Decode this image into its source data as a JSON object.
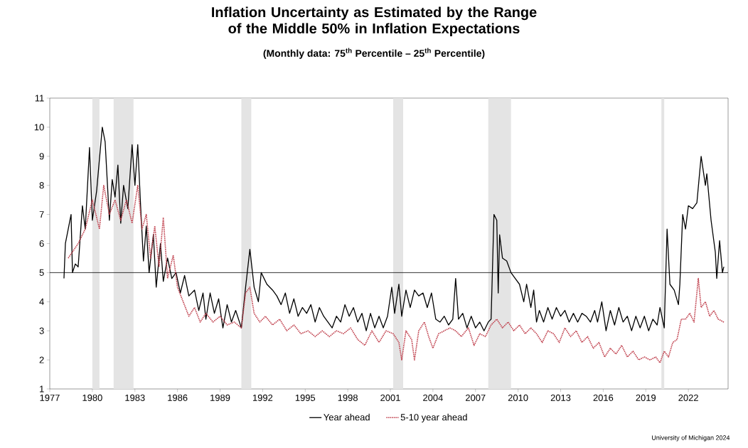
{
  "chart_data": {
    "type": "line",
    "title": "Inflation Uncertainty as Estimated by the Range of the Middle 50% in Inflation Expectations",
    "subtitle": "(Monthly data:  75$^{th}$ Percentile – 25$^{th}$ Percentile)",
    "xlim": [
      1977,
      2024.8
    ],
    "xticks": [
      1977,
      1980,
      1983,
      1986,
      1989,
      1992,
      1995,
      1998,
      2001,
      2004,
      2007,
      2010,
      2013,
      2016,
      2019,
      2022
    ],
    "ylim": [
      1,
      11
    ],
    "yticks": [
      1,
      2,
      3,
      4,
      5,
      6,
      7,
      8,
      9,
      10,
      11
    ],
    "legend": "bottom",
    "marker": "none",
    "ref_lines": [
      {
        "axis": "y",
        "value": 5,
        "color": "#000000"
      }
    ],
    "bands": [
      {
        "axis": "x",
        "from": 1980.0,
        "to": 1980.5,
        "color": "#e4e4e4"
      },
      {
        "axis": "x",
        "from": 1981.5,
        "to": 1982.9,
        "color": "#e4e4e4"
      },
      {
        "axis": "x",
        "from": 1990.5,
        "to": 1991.2,
        "color": "#e4e4e4"
      },
      {
        "axis": "x",
        "from": 2001.2,
        "to": 2001.9,
        "color": "#e4e4e4"
      },
      {
        "axis": "x",
        "from": 2007.9,
        "to": 2009.5,
        "color": "#e4e4e4"
      },
      {
        "axis": "x",
        "from": 2020.1,
        "to": 2020.3,
        "color": "#e4e4e4"
      }
    ],
    "annotations": [
      "University of Michigan 2024"
    ],
    "series": [
      {
        "name": "Year ahead",
        "color": "#000000",
        "line_style": "solid",
        "x": [
          1978.0,
          1978.1,
          1978.3,
          1978.5,
          1978.6,
          1978.8,
          1979.0,
          1979.3,
          1979.5,
          1979.8,
          1980.0,
          1980.3,
          1980.7,
          1980.9,
          1981.2,
          1981.4,
          1981.6,
          1981.8,
          1982.0,
          1982.2,
          1982.5,
          1982.8,
          1983.0,
          1983.2,
          1983.4,
          1983.6,
          1983.8,
          1984.0,
          1984.3,
          1984.5,
          1984.8,
          1985.0,
          1985.3,
          1985.6,
          1985.9,
          1986.2,
          1986.5,
          1986.8,
          1987.2,
          1987.5,
          1987.8,
          1988.0,
          1988.3,
          1988.6,
          1988.9,
          1989.2,
          1989.5,
          1989.8,
          1990.1,
          1990.5,
          1990.8,
          1991.1,
          1991.4,
          1991.7,
          1991.9,
          1992.3,
          1992.7,
          1993.0,
          1993.3,
          1993.6,
          1993.9,
          1994.2,
          1994.5,
          1994.8,
          1995.1,
          1995.4,
          1995.7,
          1996.0,
          1996.3,
          1996.6,
          1996.9,
          1997.2,
          1997.5,
          1997.8,
          1998.1,
          1998.4,
          1998.7,
          1999.0,
          1999.3,
          1999.6,
          1999.9,
          2000.2,
          2000.5,
          2000.8,
          2001.1,
          2001.3,
          2001.6,
          2001.8,
          2002.1,
          2002.4,
          2002.7,
          2003.0,
          2003.3,
          2003.6,
          2003.9,
          2004.2,
          2004.5,
          2004.8,
          2005.1,
          2005.4,
          2005.6,
          2005.8,
          2006.1,
          2006.4,
          2006.7,
          2007.0,
          2007.3,
          2007.6,
          2007.9,
          2008.1,
          2008.3,
          2008.5,
          2008.6,
          2008.7,
          2008.9,
          2009.2,
          2009.5,
          2009.8,
          2010.1,
          2010.4,
          2010.6,
          2010.9,
          2011.1,
          2011.3,
          2011.5,
          2011.8,
          2012.1,
          2012.4,
          2012.7,
          2013.0,
          2013.3,
          2013.6,
          2013.9,
          2014.2,
          2014.5,
          2014.8,
          2015.1,
          2015.4,
          2015.6,
          2015.9,
          2016.2,
          2016.5,
          2016.8,
          2017.1,
          2017.4,
          2017.7,
          2018.0,
          2018.3,
          2018.6,
          2018.9,
          2019.2,
          2019.5,
          2019.8,
          2020.0,
          2020.3,
          2020.5,
          2020.7,
          2021.0,
          2021.3,
          2021.4,
          2021.6,
          2021.8,
          2022.0,
          2022.3,
          2022.6,
          2022.9,
          2023.2,
          2023.3,
          2023.6,
          2023.9,
          2024.0,
          2024.2,
          2024.4,
          2024.5
        ],
        "values": [
          4.8,
          6.0,
          6.5,
          7.0,
          5.0,
          5.3,
          5.2,
          7.3,
          6.5,
          9.3,
          6.8,
          7.8,
          10.0,
          9.5,
          6.8,
          8.2,
          7.6,
          8.7,
          6.7,
          8.0,
          7.2,
          9.4,
          8.0,
          9.4,
          7.3,
          5.4,
          6.6,
          5.0,
          6.3,
          4.5,
          6.0,
          4.7,
          5.5,
          4.8,
          5.0,
          4.3,
          4.9,
          4.2,
          4.4,
          3.7,
          4.3,
          3.4,
          4.3,
          3.6,
          4.1,
          3.1,
          3.9,
          3.3,
          3.7,
          3.1,
          4.5,
          5.8,
          4.5,
          4.0,
          5.0,
          4.6,
          4.4,
          4.2,
          3.9,
          4.3,
          3.6,
          4.1,
          3.5,
          3.8,
          3.6,
          3.9,
          3.3,
          3.8,
          3.5,
          3.3,
          3.1,
          3.5,
          3.3,
          3.9,
          3.5,
          3.8,
          3.3,
          3.6,
          3.0,
          3.6,
          3.1,
          3.5,
          3.1,
          3.5,
          4.5,
          3.6,
          4.6,
          3.5,
          4.4,
          3.8,
          4.4,
          4.2,
          4.3,
          3.8,
          4.3,
          3.4,
          3.3,
          3.5,
          3.2,
          3.4,
          4.8,
          3.4,
          3.6,
          3.1,
          3.5,
          3.1,
          3.3,
          3.0,
          3.3,
          3.4,
          7.0,
          6.8,
          4.3,
          6.3,
          5.5,
          5.4,
          5.0,
          4.8,
          4.6,
          4.0,
          4.6,
          3.8,
          4.4,
          3.3,
          3.7,
          3.3,
          3.8,
          3.4,
          3.8,
          3.5,
          3.7,
          3.3,
          3.6,
          3.3,
          3.6,
          3.5,
          3.3,
          3.7,
          3.3,
          4.0,
          3.0,
          3.7,
          3.2,
          3.8,
          3.3,
          3.5,
          3.0,
          3.5,
          3.1,
          3.5,
          3.0,
          3.4,
          3.2,
          3.8,
          3.1,
          6.5,
          4.6,
          4.4,
          3.9,
          4.6,
          7.0,
          6.5,
          7.3,
          7.2,
          7.4,
          9.0,
          8.0,
          8.4,
          6.8,
          5.7,
          4.8,
          6.1,
          5.0,
          5.2
        ]
      },
      {
        "name": "5-10 year ahead",
        "color": "#c0404d",
        "line_style": "dotted",
        "x": [
          1978.3,
          1979.0,
          1979.5,
          1980.0,
          1980.5,
          1980.8,
          1981.2,
          1981.6,
          1982.0,
          1982.4,
          1982.8,
          1983.2,
          1983.5,
          1983.8,
          1984.1,
          1984.4,
          1984.7,
          1985.0,
          1985.3,
          1985.7,
          1986.0,
          1986.4,
          1986.8,
          1987.2,
          1987.6,
          1988.0,
          1988.5,
          1989.0,
          1989.5,
          1990.0,
          1990.5,
          1990.8,
          1991.1,
          1991.4,
          1991.8,
          1992.2,
          1992.7,
          1993.2,
          1993.7,
          1994.2,
          1994.7,
          1995.2,
          1995.7,
          1996.2,
          1996.7,
          1997.2,
          1997.7,
          1998.2,
          1998.7,
          1999.2,
          1999.7,
          2000.2,
          2000.7,
          2001.2,
          2001.6,
          2001.8,
          2002.1,
          2002.5,
          2002.7,
          2003.0,
          2003.4,
          2003.7,
          2004.0,
          2004.4,
          2004.8,
          2005.2,
          2005.6,
          2006.0,
          2006.5,
          2006.9,
          2007.3,
          2007.7,
          2008.1,
          2008.5,
          2008.9,
          2009.3,
          2009.7,
          2010.1,
          2010.5,
          2010.9,
          2011.3,
          2011.7,
          2012.1,
          2012.5,
          2012.9,
          2013.3,
          2013.7,
          2014.1,
          2014.5,
          2014.9,
          2015.3,
          2015.7,
          2016.1,
          2016.5,
          2016.9,
          2017.3,
          2017.7,
          2018.1,
          2018.5,
          2018.9,
          2019.3,
          2019.7,
          2020.0,
          2020.3,
          2020.6,
          2020.9,
          2021.2,
          2021.5,
          2021.8,
          2022.1,
          2022.4,
          2022.7,
          2022.9,
          2023.2,
          2023.5,
          2023.8,
          2024.1,
          2024.5
        ],
        "values": [
          5.5,
          6.0,
          6.5,
          7.5,
          6.5,
          8.0,
          7.0,
          7.5,
          6.8,
          7.5,
          6.7,
          8.0,
          6.5,
          7.0,
          5.5,
          6.6,
          5.2,
          6.9,
          4.8,
          5.6,
          4.5,
          4.0,
          3.5,
          3.8,
          3.3,
          3.6,
          3.3,
          3.5,
          3.2,
          3.3,
          3.1,
          4.3,
          4.5,
          3.6,
          3.3,
          3.5,
          3.2,
          3.4,
          3.0,
          3.2,
          2.9,
          3.0,
          2.8,
          3.0,
          2.8,
          3.0,
          2.9,
          3.1,
          2.7,
          2.5,
          3.0,
          2.6,
          3.0,
          2.9,
          2.6,
          2.0,
          3.0,
          2.7,
          2.0,
          3.0,
          3.3,
          2.8,
          2.4,
          2.9,
          3.0,
          3.1,
          3.0,
          2.8,
          3.1,
          2.5,
          2.9,
          2.8,
          3.2,
          3.4,
          3.1,
          3.3,
          3.0,
          3.2,
          2.9,
          3.1,
          2.9,
          2.6,
          3.0,
          2.9,
          2.6,
          3.1,
          2.8,
          3.0,
          2.6,
          2.8,
          2.4,
          2.6,
          2.1,
          2.4,
          2.2,
          2.5,
          2.1,
          2.3,
          2.0,
          2.1,
          2.0,
          2.1,
          1.9,
          2.3,
          2.1,
          2.6,
          2.7,
          3.4,
          3.4,
          3.6,
          3.3,
          4.8,
          3.8,
          4.0,
          3.5,
          3.7,
          3.4,
          3.3
        ]
      }
    ]
  }
}
